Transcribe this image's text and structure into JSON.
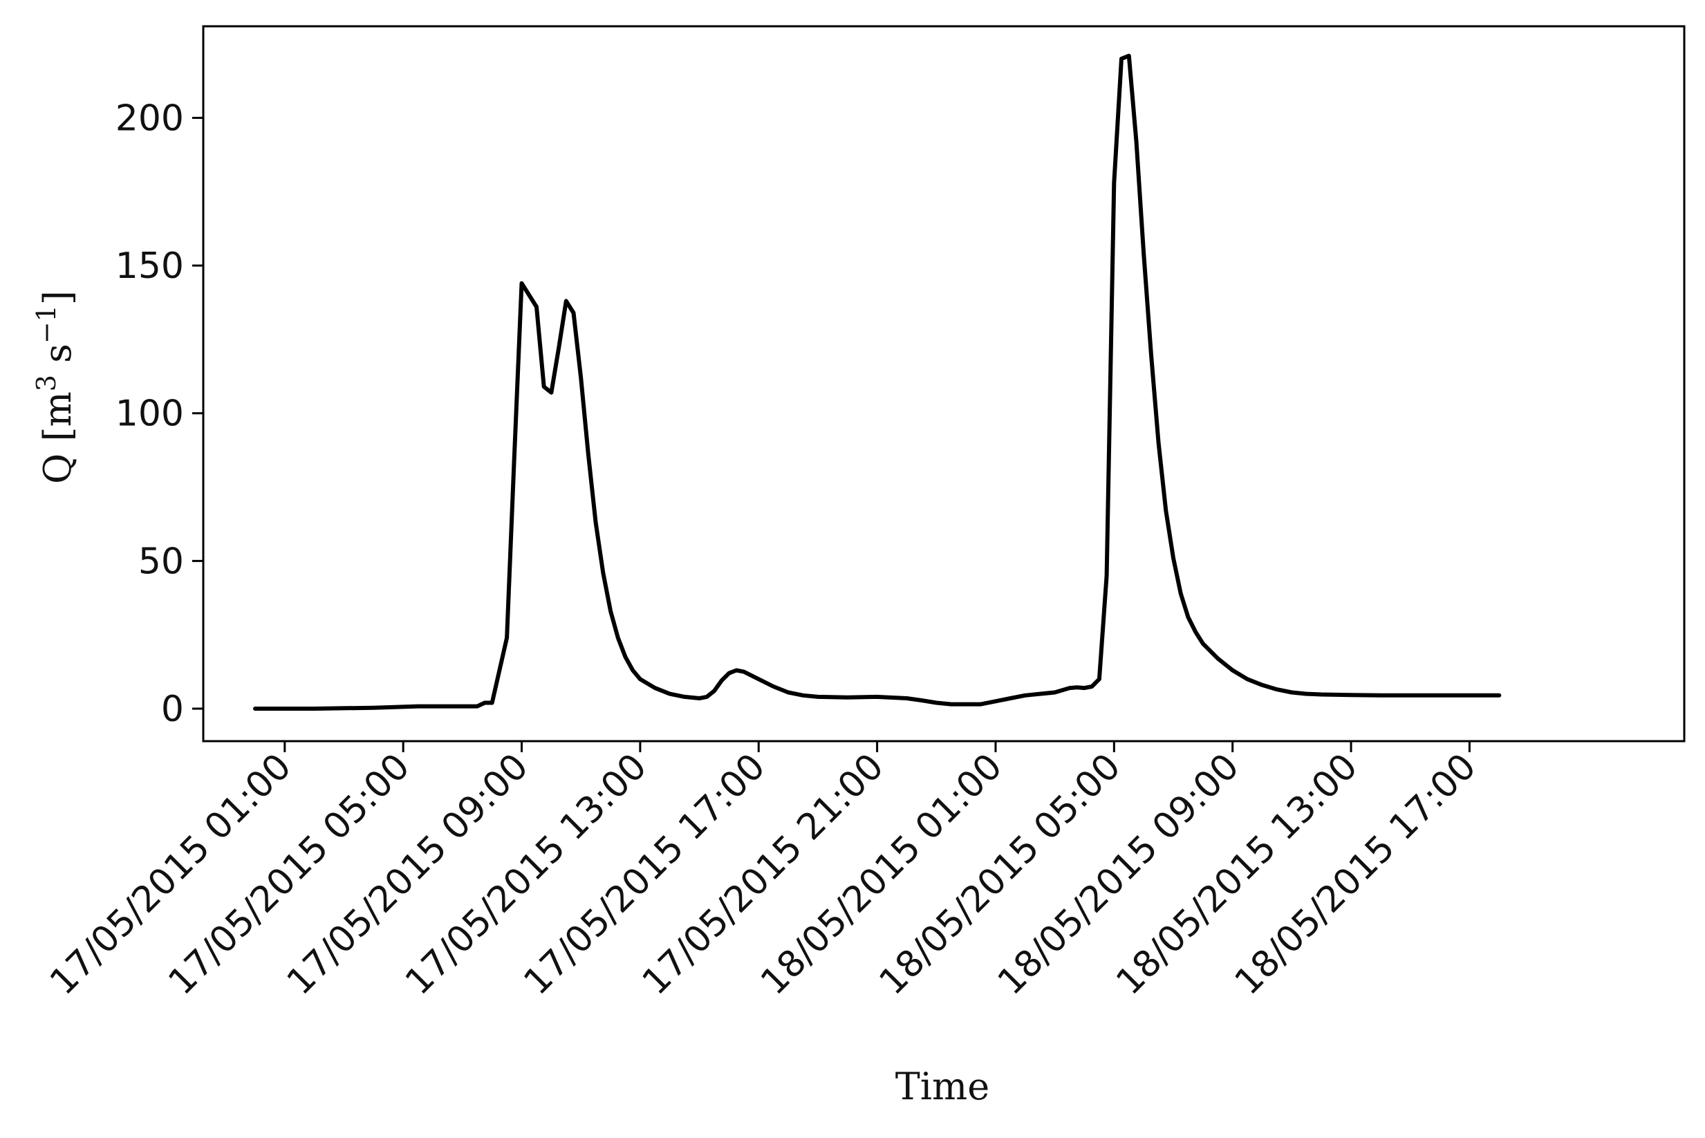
{
  "chart_data": {
    "type": "line",
    "xlabel": "Time",
    "ylabel": "Q [m^3 s^-1]",
    "ylabel_parts": {
      "prefix": "Q [m",
      "sup1": "3",
      "mid": " s",
      "sup2": "−1",
      "suffix": "]"
    },
    "ylim": [
      -11,
      231
    ],
    "xlim": [
      "2015-05-16 22:15",
      "2015-05-19 00:15"
    ],
    "yticks": [
      0,
      50,
      100,
      150,
      200
    ],
    "xticks": [
      {
        "t": "2015-05-17 01:00",
        "label": "17/05/2015 01:00"
      },
      {
        "t": "2015-05-17 05:00",
        "label": "17/05/2015 05:00"
      },
      {
        "t": "2015-05-17 09:00",
        "label": "17/05/2015 09:00"
      },
      {
        "t": "2015-05-17 13:00",
        "label": "17/05/2015 13:00"
      },
      {
        "t": "2015-05-17 17:00",
        "label": "17/05/2015 17:00"
      },
      {
        "t": "2015-05-17 21:00",
        "label": "17/05/2015 21:00"
      },
      {
        "t": "2015-05-18 01:00",
        "label": "18/05/2015 01:00"
      },
      {
        "t": "2015-05-18 05:00",
        "label": "18/05/2015 05:00"
      },
      {
        "t": "2015-05-18 09:00",
        "label": "18/05/2015 09:00"
      },
      {
        "t": "2015-05-18 13:00",
        "label": "18/05/2015 13:00"
      },
      {
        "t": "2015-05-18 17:00",
        "label": "18/05/2015 17:00"
      }
    ],
    "grid": false,
    "line_color": "#000000",
    "series": [
      {
        "x": [
          "2015-05-17 00:00",
          "2015-05-17 02:00",
          "2015-05-17 04:00",
          "2015-05-17 05:30",
          "2015-05-17 06:30",
          "2015-05-17 07:30",
          "2015-05-17 07:45",
          "2015-05-17 08:00",
          "2015-05-17 08:30",
          "2015-05-17 08:45",
          "2015-05-17 09:00",
          "2015-05-17 09:30",
          "2015-05-17 09:45",
          "2015-05-17 10:00",
          "2015-05-17 10:15",
          "2015-05-17 10:30",
          "2015-05-17 10:45",
          "2015-05-17 11:00",
          "2015-05-17 11:15",
          "2015-05-17 11:30",
          "2015-05-17 11:45",
          "2015-05-17 12:00",
          "2015-05-17 12:15",
          "2015-05-17 12:30",
          "2015-05-17 12:45",
          "2015-05-17 13:00",
          "2015-05-17 13:30",
          "2015-05-17 14:00",
          "2015-05-17 14:30",
          "2015-05-17 15:00",
          "2015-05-17 15:15",
          "2015-05-17 15:30",
          "2015-05-17 15:45",
          "2015-05-17 16:00",
          "2015-05-17 16:15",
          "2015-05-17 16:30",
          "2015-05-17 17:00",
          "2015-05-17 17:30",
          "2015-05-17 18:00",
          "2015-05-17 18:30",
          "2015-05-17 19:00",
          "2015-05-17 20:00",
          "2015-05-17 21:00",
          "2015-05-17 22:00",
          "2015-05-17 22:30",
          "2015-05-17 23:00",
          "2015-05-17 23:30",
          "2015-05-18 00:00",
          "2015-05-18 00:30",
          "2015-05-18 01:00",
          "2015-05-18 01:30",
          "2015-05-18 02:00",
          "2015-05-18 02:30",
          "2015-05-18 03:00",
          "2015-05-18 03:30",
          "2015-05-18 03:45",
          "2015-05-18 04:00",
          "2015-05-18 04:15",
          "2015-05-18 04:30",
          "2015-05-18 04:45",
          "2015-05-18 05:00",
          "2015-05-18 05:15",
          "2015-05-18 05:30",
          "2015-05-18 05:45",
          "2015-05-18 06:00",
          "2015-05-18 06:15",
          "2015-05-18 06:30",
          "2015-05-18 06:45",
          "2015-05-18 07:00",
          "2015-05-18 07:15",
          "2015-05-18 07:30",
          "2015-05-18 07:45",
          "2015-05-18 08:00",
          "2015-05-18 08:30",
          "2015-05-18 09:00",
          "2015-05-18 09:30",
          "2015-05-18 10:00",
          "2015-05-18 10:30",
          "2015-05-18 11:00",
          "2015-05-18 11:30",
          "2015-05-18 12:00",
          "2015-05-18 13:00",
          "2015-05-18 14:00",
          "2015-05-18 15:00",
          "2015-05-18 16:00",
          "2015-05-18 17:00",
          "2015-05-18 17:45",
          "2015-05-18 18:00"
        ],
        "y": [
          0,
          0,
          0.3,
          0.8,
          0.8,
          0.8,
          2,
          2,
          24,
          85,
          144,
          136,
          109,
          107,
          122,
          138,
          134,
          112,
          86,
          63,
          46,
          33,
          24,
          17.5,
          13,
          10,
          7,
          5,
          4,
          3.5,
          4,
          6,
          9.5,
          12,
          13,
          12.5,
          10,
          7.5,
          5.5,
          4.5,
          4,
          3.8,
          4,
          3.5,
          2.8,
          2,
          1.5,
          1.5,
          1.5,
          2.5,
          3.5,
          4.5,
          5,
          5.5,
          7,
          7.2,
          7,
          7.5,
          10,
          45,
          178,
          220,
          221,
          192,
          154,
          120,
          90,
          67,
          51,
          39,
          31,
          26,
          22,
          17,
          13,
          10,
          8,
          6.5,
          5.5,
          5,
          4.8,
          4.6,
          4.5,
          4.5,
          4.5,
          4.5,
          4.5,
          4.5
        ]
      }
    ]
  }
}
